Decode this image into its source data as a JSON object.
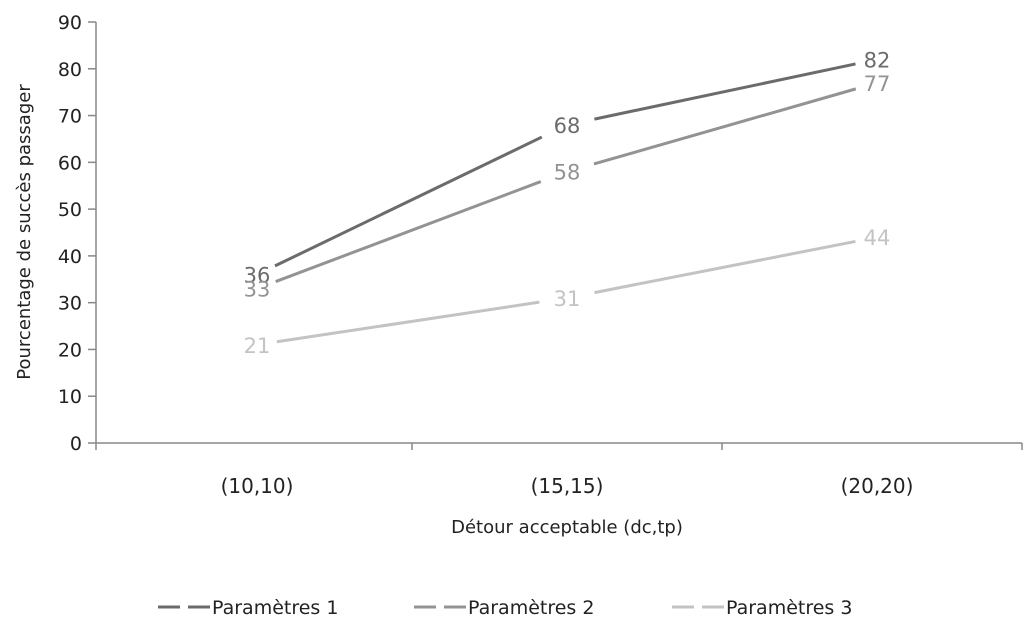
{
  "chart_data": {
    "type": "line",
    "categories": [
      "(10,10)",
      "(15,15)",
      "(20,20)"
    ],
    "series": [
      {
        "name": "Paramètres 1",
        "values": [
          36,
          68,
          82
        ],
        "color": "#6b6b6b"
      },
      {
        "name": "Paramètres 2",
        "values": [
          33,
          58,
          77
        ],
        "color": "#939393"
      },
      {
        "name": "Paramètres 3",
        "values": [
          21,
          31,
          44
        ],
        "color": "#c3c3c3"
      }
    ],
    "xlabel": "Détour acceptable (dc,tp)",
    "ylabel": "Pourcentage de succès passager",
    "ylim": [
      0,
      90
    ],
    "yticks": [
      0,
      10,
      20,
      30,
      40,
      50,
      60,
      70,
      80,
      90
    ],
    "grid": false,
    "legend_position": "bottom",
    "data_labels": true
  }
}
